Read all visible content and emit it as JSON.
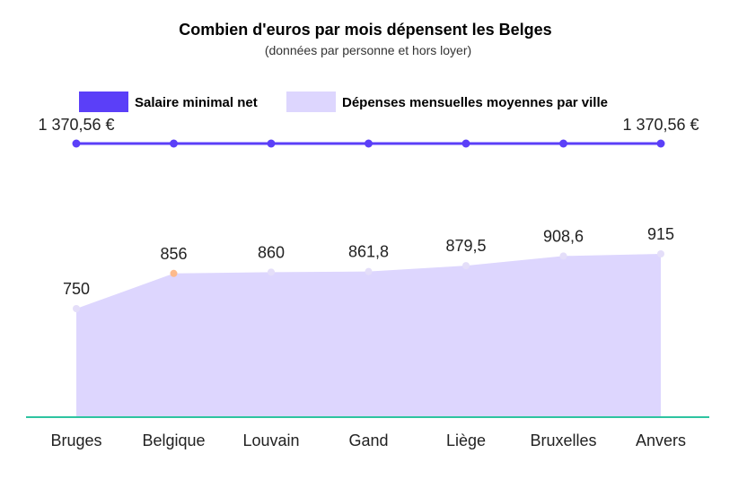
{
  "chart_data": {
    "type": "line",
    "title": "Combien d'euros par mois dépensent les Belges",
    "subtitle": "(données par personne et hors loyer)",
    "categories": [
      "Bruges",
      "Belgique",
      "Louvain",
      "Gand",
      "Liège",
      "Bruxelles",
      "Anvers"
    ],
    "series": [
      {
        "name": "Salaire minimal net",
        "type": "line",
        "values": [
          1370.56,
          1370.56,
          1370.56,
          1370.56,
          1370.56,
          1370.56,
          1370.56
        ],
        "labels": [
          "1 370,56 €",
          "",
          "",
          "",
          "",
          "",
          "1 370,56 €"
        ],
        "color": "#5b3ff8"
      },
      {
        "name": "Dépenses mensuelles moyennes par ville",
        "type": "area",
        "values": [
          750,
          856,
          860,
          861.8,
          879.5,
          908.6,
          915
        ],
        "labels": [
          "750",
          "856",
          "860",
          "861,8",
          "879,5",
          "908,6",
          "915"
        ],
        "color": "#ddd6fe",
        "highlight_index": 1,
        "highlight_color": "#fdba8c"
      }
    ],
    "baseline_color": "#2ec4a0",
    "legend_position": "top-center"
  }
}
